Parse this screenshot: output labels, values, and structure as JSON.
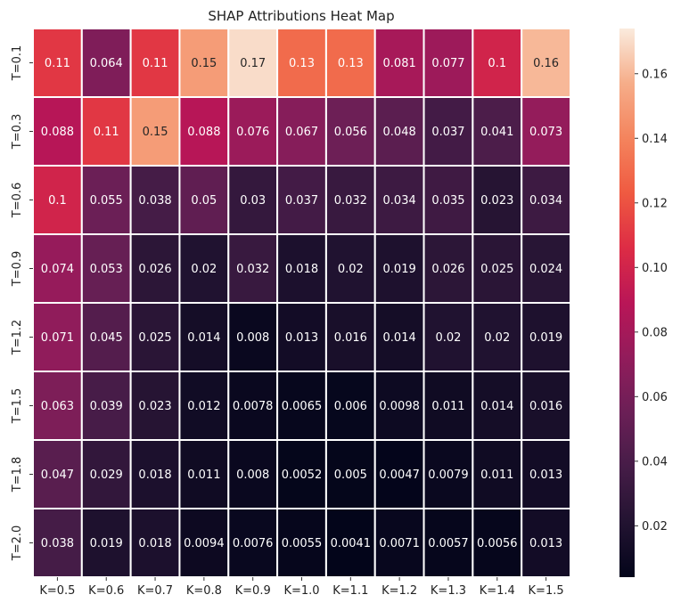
{
  "chart_data": {
    "type": "heatmap",
    "title": "SHAP Attributions Heat Map",
    "xlabel": "",
    "ylabel": "",
    "x_categories": [
      "K=0.5",
      "K=0.6",
      "K=0.7",
      "K=0.8",
      "K=0.9",
      "K=1.0",
      "K=1.1",
      "K=1.2",
      "K=1.3",
      "K=1.4",
      "K=1.5"
    ],
    "y_categories": [
      "T=0.1",
      "T=0.3",
      "T=0.6",
      "T=0.9",
      "T=1.2",
      "T=1.5",
      "T=1.8",
      "T=2.0"
    ],
    "values": [
      [
        "0.11",
        "0.064",
        "0.11",
        "0.15",
        "0.17",
        "0.13",
        "0.13",
        "0.081",
        "0.077",
        "0.1",
        "0.16"
      ],
      [
        "0.088",
        "0.11",
        "0.15",
        "0.088",
        "0.076",
        "0.067",
        "0.056",
        "0.048",
        "0.037",
        "0.041",
        "0.073"
      ],
      [
        "0.1",
        "0.055",
        "0.038",
        "0.05",
        "0.03",
        "0.037",
        "0.032",
        "0.034",
        "0.035",
        "0.023",
        "0.034"
      ],
      [
        "0.074",
        "0.053",
        "0.026",
        "0.02",
        "0.032",
        "0.018",
        "0.02",
        "0.019",
        "0.026",
        "0.025",
        "0.024"
      ],
      [
        "0.071",
        "0.045",
        "0.025",
        "0.014",
        "0.008",
        "0.013",
        "0.016",
        "0.014",
        "0.02",
        "0.02",
        "0.019"
      ],
      [
        "0.063",
        "0.039",
        "0.023",
        "0.012",
        "0.0078",
        "0.0065",
        "0.006",
        "0.0098",
        "0.011",
        "0.014",
        "0.016"
      ],
      [
        "0.047",
        "0.029",
        "0.018",
        "0.011",
        "0.008",
        "0.0052",
        "0.005",
        "0.0047",
        "0.0079",
        "0.011",
        "0.013"
      ],
      [
        "0.038",
        "0.019",
        "0.018",
        "0.0094",
        "0.0076",
        "0.0055",
        "0.0041",
        "0.0071",
        "0.0057",
        "0.0056",
        "0.013"
      ]
    ],
    "colormap": "rocket",
    "color_range": [
      0.0041,
      0.174
    ],
    "colorbar_ticks": [
      "0.02",
      "0.04",
      "0.06",
      "0.08",
      "0.10",
      "0.12",
      "0.14",
      "0.16"
    ],
    "annotated": true
  }
}
